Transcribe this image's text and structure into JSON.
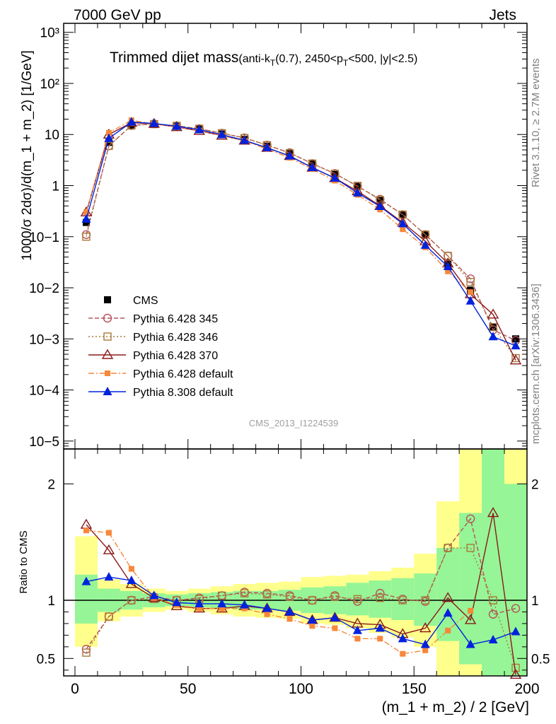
{
  "header": {
    "left": "7000 GeV pp",
    "right": "Jets"
  },
  "title": {
    "main": "Trimmed dijet mass",
    "sub_pre": "(anti-k",
    "sub_T1": "T",
    "sub_mid": "(0.7), 2450<p",
    "sub_T2": "T",
    "sub_post": "<500, |y|<2.5)"
  },
  "side_labels": {
    "rivet": "Rivet 3.1.10, ≥ 2.7M events",
    "mcplots": "mcplots.cern.ch [arXiv:1306.3436]"
  },
  "watermark": "CMS_2013_I1224539",
  "colors": {
    "cms": "#000000",
    "p345": "#b5525a",
    "p346": "#a87a3a",
    "p370": "#8b1a1a",
    "p6def": "#f7873a",
    "p8def": "#0022dd",
    "band_green": "#96f596",
    "band_yellow": "#ffff8c"
  },
  "chart_data": [
    {
      "type": "line",
      "title": "Trimmed dijet mass(anti-kT(0.7), 2450<pT<500, |y|<2.5)",
      "ylabel": "1000/σ 2dσ)/d(m_1 + m_2) [1/GeV]",
      "yscale": "log",
      "ylim": [
        7e-06,
        1500
      ],
      "xlim": [
        -5,
        200
      ],
      "yticks": [
        "10−5",
        "10−4",
        "10−3",
        "10−2",
        "10−1",
        "1",
        "10",
        "10²",
        "10³"
      ],
      "x": [
        5,
        15,
        25,
        35,
        45,
        55,
        65,
        75,
        85,
        95,
        105,
        115,
        125,
        135,
        145,
        155,
        165,
        175,
        185,
        195
      ],
      "legend": [
        "CMS",
        "Pythia 6.428 345",
        "Pythia 6.428 346",
        "Pythia 6.428 370",
        "Pythia 6.428 default",
        "Pythia 8.308 default"
      ],
      "series": [
        {
          "name": "CMS",
          "values": [
            0.19,
            7.0,
            15.0,
            15.8,
            14.8,
            12.8,
            10.2,
            8.0,
            5.9,
            4.2,
            2.7,
            1.65,
            0.98,
            0.51,
            0.27,
            0.11,
            0.029,
            0.009,
            0.0017,
            0.001
          ]
        },
        {
          "name": "Pythia 6.428 345",
          "values": [
            0.11,
            6.0,
            15.0,
            16.2,
            14.8,
            13.0,
            10.6,
            8.6,
            6.2,
            4.4,
            2.7,
            1.72,
            0.97,
            0.54,
            0.27,
            0.11,
            0.042,
            0.015,
            0.0015,
            0.00093
          ]
        },
        {
          "name": "Pythia 6.428 346",
          "values": [
            0.1,
            6.0,
            15.0,
            16.0,
            14.8,
            13.0,
            10.6,
            8.5,
            6.2,
            4.3,
            2.7,
            1.7,
            0.99,
            0.52,
            0.27,
            0.11,
            0.042,
            0.013,
            0.0017,
            0.00042
          ]
        },
        {
          "name": "Pythia 6.428 370",
          "values": [
            0.3,
            10.0,
            17.0,
            16.2,
            14.0,
            11.8,
            9.5,
            7.6,
            5.5,
            3.8,
            2.25,
            1.4,
            0.78,
            0.4,
            0.19,
            0.082,
            0.03,
            0.0075,
            0.003,
            0.00038
          ]
        },
        {
          "name": "Pythia 6.428 default",
          "values": [
            0.3,
            10.8,
            19.0,
            16.0,
            14.2,
            12.0,
            9.6,
            7.5,
            5.2,
            3.5,
            2.1,
            1.25,
            0.66,
            0.34,
            0.14,
            0.062,
            0.021,
            0.0082,
            null,
            null
          ]
        },
        {
          "name": "Pythia 8.308 default",
          "values": [
            0.22,
            8.4,
            17.5,
            16.5,
            14.5,
            12.4,
            9.9,
            7.7,
            5.5,
            3.8,
            2.25,
            1.4,
            0.72,
            0.39,
            0.18,
            0.068,
            0.026,
            0.0055,
            0.0011,
            0.00073
          ]
        }
      ]
    },
    {
      "type": "line",
      "ylabel": "Ratio to CMS",
      "xlabel": "(m_1 + m_2) / 2 [GeV]",
      "ylim": [
        0.35,
        2.3
      ],
      "xlim": [
        -5,
        200
      ],
      "yticks": [
        "0.5",
        "1",
        "2"
      ],
      "xticks": [
        "0",
        "50",
        "100",
        "150",
        "200"
      ],
      "x": [
        5,
        15,
        25,
        35,
        45,
        55,
        65,
        75,
        85,
        95,
        105,
        115,
        125,
        135,
        145,
        155,
        165,
        175,
        185,
        195
      ],
      "band_green": [
        [
          0.8,
          1.22
        ],
        [
          0.9,
          1.1
        ],
        [
          0.92,
          1.08
        ],
        [
          0.94,
          1.06
        ],
        [
          0.95,
          1.05
        ],
        [
          0.94,
          1.06
        ],
        [
          0.93,
          1.07
        ],
        [
          0.92,
          1.08
        ],
        [
          0.92,
          1.08
        ],
        [
          0.91,
          1.09
        ],
        [
          0.89,
          1.11
        ],
        [
          0.88,
          1.12
        ],
        [
          0.87,
          1.15
        ],
        [
          0.85,
          1.17
        ],
        [
          0.83,
          1.19
        ],
        [
          0.78,
          1.23
        ],
        [
          0.65,
          1.45
        ],
        [
          0.45,
          1.75
        ],
        [
          0.35,
          2.3
        ],
        [
          0.35,
          2.0
        ]
      ],
      "band_yellow": [
        [
          0.6,
          1.55
        ],
        [
          0.82,
          1.18
        ],
        [
          0.86,
          1.14
        ],
        [
          0.9,
          1.1
        ],
        [
          0.92,
          1.08
        ],
        [
          0.9,
          1.1
        ],
        [
          0.88,
          1.12
        ],
        [
          0.86,
          1.14
        ],
        [
          0.85,
          1.15
        ],
        [
          0.84,
          1.16
        ],
        [
          0.8,
          1.2
        ],
        [
          0.79,
          1.21
        ],
        [
          0.76,
          1.22
        ],
        [
          0.72,
          1.25
        ],
        [
          0.68,
          1.28
        ],
        [
          0.6,
          1.4
        ],
        [
          0.35,
          1.85
        ],
        [
          0.35,
          2.3
        ],
        [
          0.35,
          2.3
        ],
        [
          0.35,
          2.3
        ]
      ],
      "series": [
        {
          "name": "Pythia 6.428 345",
          "values": [
            0.58,
            0.86,
            1.0,
            1.03,
            1.0,
            1.02,
            1.04,
            1.07,
            1.06,
            1.04,
            1.0,
            1.04,
            0.99,
            1.06,
            1.01,
            0.99,
            1.45,
            1.7,
            0.88,
            0.93
          ]
        },
        {
          "name": "Pythia 6.428 346",
          "values": [
            0.55,
            0.86,
            1.0,
            1.01,
            1.0,
            1.01,
            1.04,
            1.06,
            1.05,
            1.03,
            1.0,
            1.03,
            1.01,
            1.02,
            1.0,
            1.0,
            1.45,
            1.45,
            1.0,
            0.42
          ]
        },
        {
          "name": "Pythia 6.428 370",
          "values": [
            1.65,
            1.43,
            1.14,
            1.02,
            0.95,
            0.93,
            0.93,
            0.95,
            0.93,
            0.9,
            0.83,
            0.85,
            0.8,
            0.79,
            0.71,
            0.76,
            1.02,
            0.83,
            1.75,
            0.36
          ]
        },
        {
          "name": "Pythia 6.428 default",
          "values": [
            1.6,
            1.58,
            1.27,
            1.02,
            0.96,
            0.93,
            0.93,
            0.93,
            0.88,
            0.84,
            0.78,
            0.76,
            0.67,
            0.67,
            0.54,
            0.57,
            0.74,
            0.91,
            null,
            null
          ]
        },
        {
          "name": "Pythia 8.308 default",
          "values": [
            1.16,
            1.2,
            1.17,
            1.04,
            0.98,
            0.97,
            0.97,
            0.96,
            0.93,
            0.9,
            0.83,
            0.85,
            0.74,
            0.76,
            0.67,
            0.62,
            0.89,
            0.62,
            0.66,
            0.73
          ]
        }
      ]
    }
  ]
}
